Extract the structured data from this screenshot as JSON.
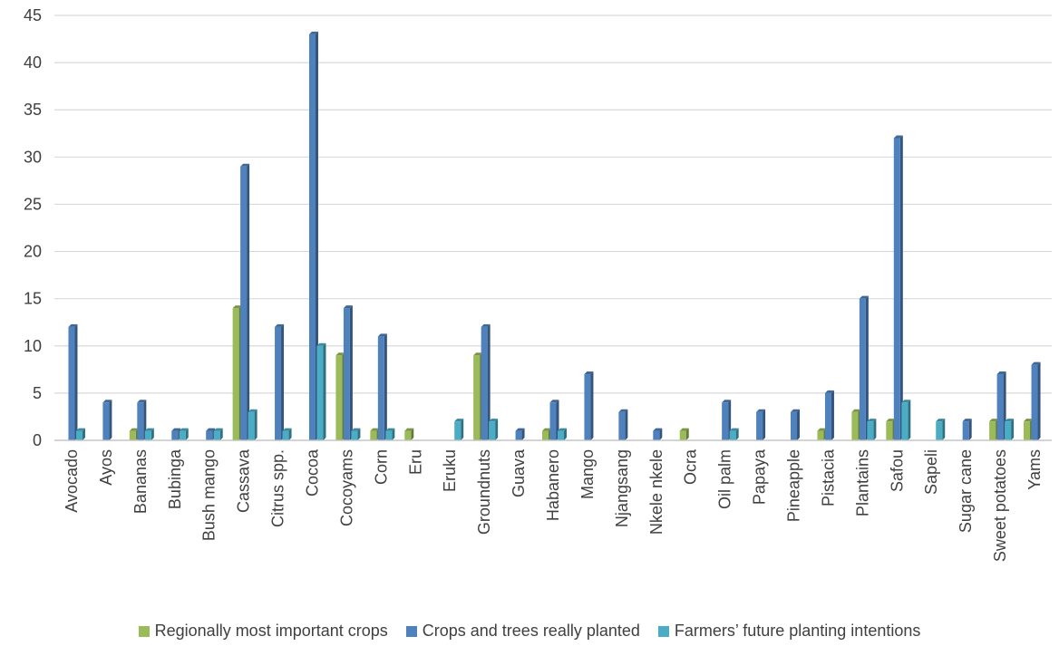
{
  "chart_data": {
    "type": "bar",
    "title": "",
    "xlabel": "",
    "ylabel": "",
    "ylim": [
      0,
      45
    ],
    "yticks": [
      0,
      5,
      10,
      15,
      20,
      25,
      30,
      35,
      40,
      45
    ],
    "grid": true,
    "legend_position": "bottom",
    "categories": [
      "Avocado",
      "Ayos",
      "Bananas",
      "Bubinga",
      "Bush mango",
      "Cassava",
      "Citrus spp.",
      "Cocoa",
      "Cocoyams",
      "Corn",
      "Eru",
      "Eruku",
      "Groundnuts",
      "Guava",
      "Habanero",
      "Mango",
      "Njangsang",
      "Nkele nkele",
      "Ocra",
      "Oil palm",
      "Papaya",
      "Pineapple",
      "Pistacia",
      "Plantains",
      "Safou",
      "Sapeli",
      "Sugar cane",
      "Sweet potatoes",
      "Yams"
    ],
    "series": [
      {
        "name": "Regionally most important crops",
        "color": "#9bbb59",
        "values": [
          0,
          0,
          1,
          0,
          0,
          14,
          0,
          0,
          9,
          1,
          1,
          0,
          9,
          0,
          1,
          0,
          0,
          0,
          1,
          0,
          0,
          0,
          1,
          3,
          2,
          0,
          0,
          2,
          2
        ]
      },
      {
        "name": "Crops and trees really planted",
        "color": "#4f81bd",
        "values": [
          12,
          4,
          4,
          1,
          1,
          29,
          12,
          43,
          14,
          11,
          0,
          0,
          12,
          1,
          4,
          7,
          3,
          1,
          0,
          4,
          3,
          3,
          5,
          15,
          32,
          0,
          2,
          7,
          8
        ]
      },
      {
        "name": "Farmers’ future planting intentions",
        "color": "#4bacc6",
        "values": [
          1,
          0,
          1,
          1,
          1,
          3,
          1,
          10,
          1,
          1,
          0,
          2,
          2,
          0,
          1,
          0,
          0,
          0,
          0,
          1,
          0,
          0,
          0,
          2,
          4,
          2,
          0,
          2,
          0
        ]
      }
    ]
  }
}
